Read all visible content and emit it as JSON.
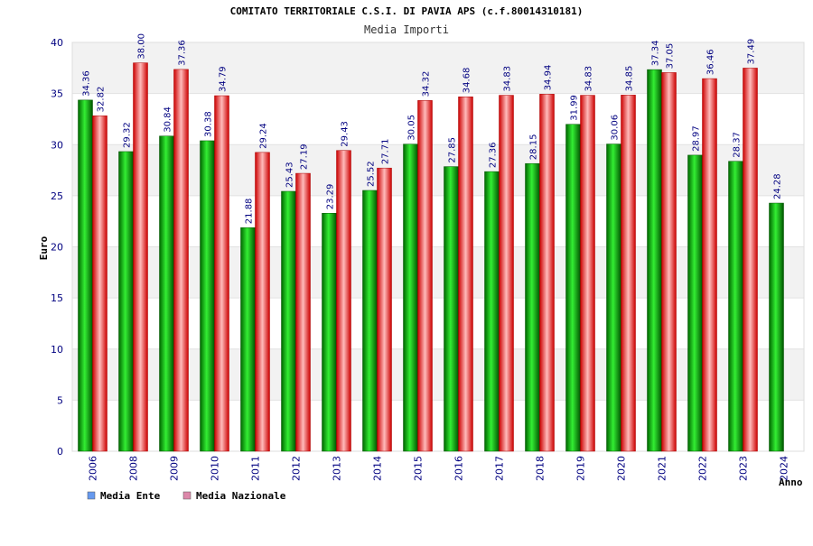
{
  "chart_data": {
    "type": "bar",
    "title": "COMITATO TERRITORIALE C.S.I. DI PAVIA APS (c.f.80014310181)",
    "subtitle": "Media Importi",
    "xlabel": "Anno",
    "ylabel": "Euro",
    "ylim": [
      0,
      40
    ],
    "yticks": [
      0,
      5,
      10,
      15,
      20,
      25,
      30,
      35,
      40
    ],
    "grid": true,
    "legend_position": "bottom-left",
    "categories": [
      "2006",
      "2008",
      "2009",
      "2010",
      "2011",
      "2012",
      "2013",
      "2014",
      "2015",
      "2016",
      "2017",
      "2018",
      "2019",
      "2020",
      "2021",
      "2022",
      "2023",
      "2024"
    ],
    "series": [
      {
        "name": "Media Ente",
        "color": "#00aa00",
        "legend_color": "#6699ee",
        "values": [
          34.36,
          29.32,
          30.84,
          30.38,
          21.88,
          25.43,
          23.29,
          25.52,
          30.05,
          27.85,
          27.36,
          28.15,
          31.99,
          30.06,
          37.34,
          28.97,
          28.37,
          24.28
        ],
        "labels": [
          "34.36",
          "29.32",
          "30.84",
          "30.38",
          "21.88",
          "25.43",
          "23.29",
          "25.52",
          "30.05",
          "27.85",
          "27.36",
          "28.15",
          "31.99",
          "30.06",
          "37.34",
          "28.97",
          "28.37",
          "24.28"
        ]
      },
      {
        "name": "Media Nazionale",
        "color": "#ee2222",
        "legend_color": "#dd88aa",
        "values": [
          32.82,
          38.0,
          37.36,
          34.79,
          29.24,
          27.19,
          29.43,
          27.71,
          34.32,
          34.68,
          34.83,
          34.94,
          34.83,
          34.85,
          37.05,
          36.46,
          37.49,
          null
        ],
        "labels": [
          "32.82",
          "38.00",
          "37.36",
          "34.79",
          "29.24",
          "27.19",
          "29.43",
          "27.71",
          "34.32",
          "34.68",
          "34.83",
          "34.94",
          "34.83",
          "34.85",
          "37.05",
          "36.46",
          "37.49",
          null
        ]
      }
    ]
  }
}
